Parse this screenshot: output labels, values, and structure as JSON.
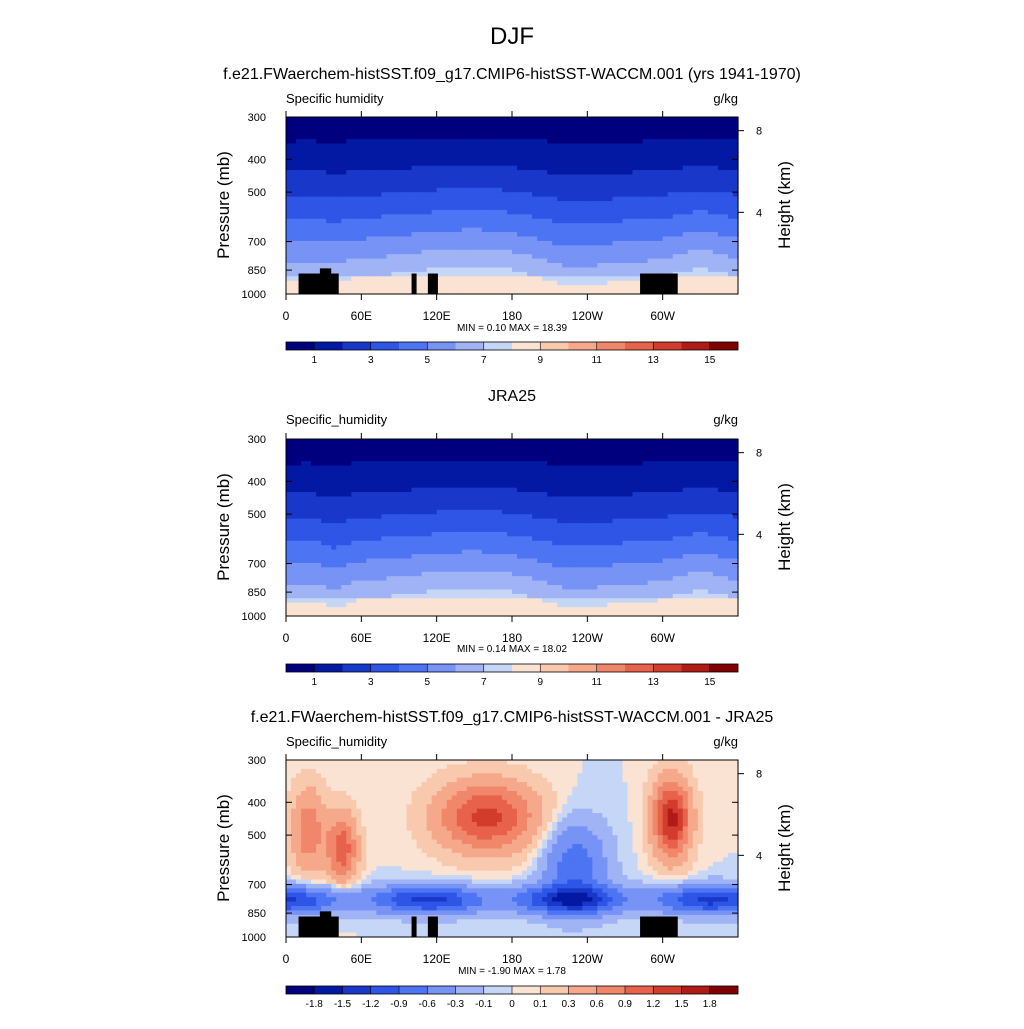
{
  "figure": {
    "title": "DJF"
  },
  "colors": {
    "abs_scale": [
      "#00007f",
      "#0419a3",
      "#1938c9",
      "#2e55e6",
      "#4d74f3",
      "#7693f5",
      "#9fb3f5",
      "#c6d6f7",
      "#fbe3d3",
      "#f9c9ae",
      "#f6a98a",
      "#f1876a",
      "#e8624b",
      "#d23c2c",
      "#b01b16",
      "#800000"
    ],
    "diff_scale": [
      "#00007f",
      "#0419a3",
      "#1938c9",
      "#2e55e6",
      "#4d74f3",
      "#7693f5",
      "#9fb3f5",
      "#c6d6f7",
      "#fbe3d3",
      "#f9c9ae",
      "#f6a98a",
      "#f1876a",
      "#e8624b",
      "#d23c2c",
      "#b01b16",
      "#800000"
    ],
    "terrain": "#000000"
  },
  "chart_data": [
    {
      "type": "heatmap",
      "panel_title": "f.e21.FWaerchem-histSST.f09_g17.CMIP6-histSST-WACCM.001 (yrs 1941-1970)",
      "left_label": "Specific humidity",
      "right_label": "g/kg",
      "ylabel": "Pressure (mb)",
      "ylabel_right": "Height (km)",
      "y_ticks": [
        "300",
        "400",
        "500",
        "700",
        "850",
        "1000"
      ],
      "y_tick_values": [
        300,
        400,
        500,
        700,
        850,
        1000
      ],
      "y_right_ticks": [
        "8",
        "4"
      ],
      "y_right_tick_values": [
        8,
        4
      ],
      "x_ticks": [
        "0",
        "60E",
        "120E",
        "180",
        "120W",
        "60W"
      ],
      "x_tick_values": [
        0,
        60,
        120,
        180,
        240,
        300
      ],
      "xlim": [
        0,
        360
      ],
      "ylim": [
        1000,
        300
      ],
      "stats": "MIN =   0.10  MAX =   18.39",
      "min": 0.1,
      "max": 18.39,
      "colorbar_labels": [
        "1",
        "3",
        "5",
        "7",
        "9",
        "11",
        "13",
        "15"
      ],
      "colorbar_values": [
        1,
        3,
        5,
        7,
        9,
        11,
        13,
        15
      ],
      "kind": "abs",
      "terrain": true
    },
    {
      "type": "heatmap",
      "panel_title": "JRA25",
      "left_label": "Specific_humidity",
      "right_label": "g/kg",
      "ylabel": "Pressure (mb)",
      "ylabel_right": "Height (km)",
      "y_ticks": [
        "300",
        "400",
        "500",
        "700",
        "850",
        "1000"
      ],
      "y_tick_values": [
        300,
        400,
        500,
        700,
        850,
        1000
      ],
      "y_right_ticks": [
        "8",
        "4"
      ],
      "y_right_tick_values": [
        8,
        4
      ],
      "x_ticks": [
        "0",
        "60E",
        "120E",
        "180",
        "120W",
        "60W"
      ],
      "x_tick_values": [
        0,
        60,
        120,
        180,
        240,
        300
      ],
      "xlim": [
        0,
        360
      ],
      "ylim": [
        1000,
        300
      ],
      "stats": "MIN =   0.14  MAX =   18.02",
      "min": 0.14,
      "max": 18.02,
      "colorbar_labels": [
        "1",
        "3",
        "5",
        "7",
        "9",
        "11",
        "13",
        "15"
      ],
      "colorbar_values": [
        1,
        3,
        5,
        7,
        9,
        11,
        13,
        15
      ],
      "kind": "abs",
      "terrain": false
    },
    {
      "type": "heatmap",
      "panel_title": "f.e21.FWaerchem-histSST.f09_g17.CMIP6-histSST-WACCM.001 - JRA25",
      "left_label": "Specific_humidity",
      "right_label": "g/kg",
      "ylabel": "Pressure (mb)",
      "ylabel_right": "Height (km)",
      "y_ticks": [
        "300",
        "400",
        "500",
        "700",
        "850",
        "1000"
      ],
      "y_tick_values": [
        300,
        400,
        500,
        700,
        850,
        1000
      ],
      "y_right_ticks": [
        "8",
        "4"
      ],
      "y_right_tick_values": [
        8,
        4
      ],
      "x_ticks": [
        "0",
        "60E",
        "120E",
        "180",
        "120W",
        "60W"
      ],
      "x_tick_values": [
        0,
        60,
        120,
        180,
        240,
        300
      ],
      "xlim": [
        0,
        360
      ],
      "ylim": [
        1000,
        300
      ],
      "stats": "MIN =  -1.90  MAX =   1.78",
      "min": -1.9,
      "max": 1.78,
      "colorbar_labels": [
        "-1.8",
        "-1.5",
        "-1.2",
        "-0.9",
        "-0.6",
        "-0.3",
        "-0.1",
        "0",
        "0.1",
        "0.3",
        "0.6",
        "0.9",
        "1.2",
        "1.5",
        "1.8"
      ],
      "colorbar_values": [
        -1.8,
        -1.5,
        -1.2,
        -0.9,
        -0.6,
        -0.3,
        -0.1,
        0,
        0.1,
        0.3,
        0.6,
        0.9,
        1.2,
        1.5,
        1.8
      ],
      "kind": "diff",
      "terrain": true
    }
  ]
}
